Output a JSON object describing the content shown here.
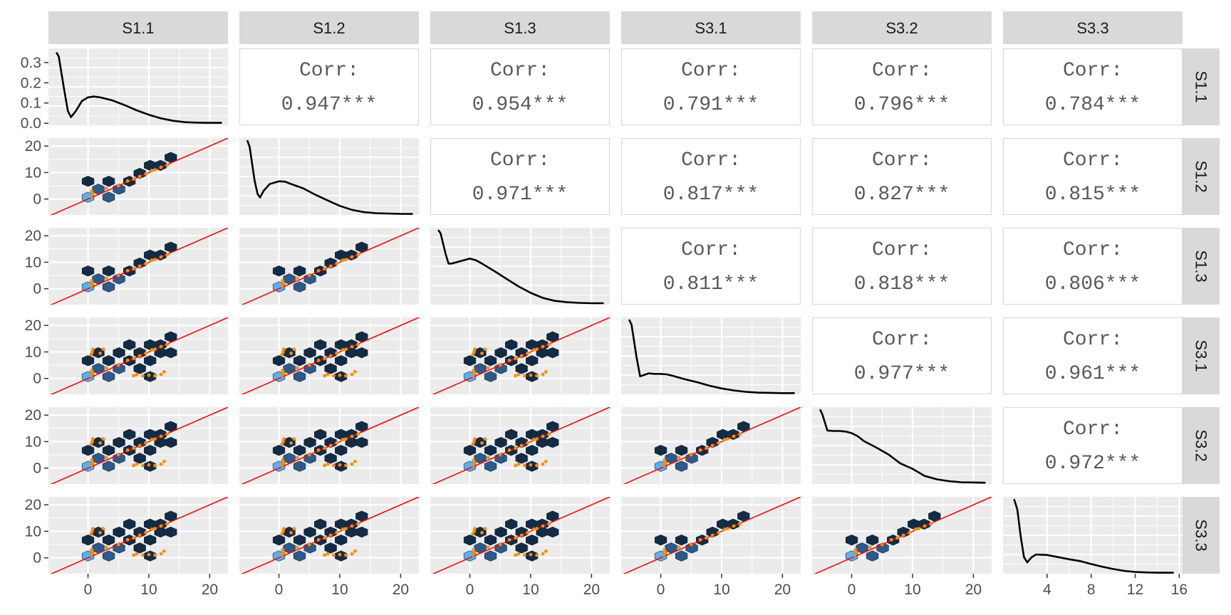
{
  "chart_data": {
    "type": "scatter",
    "title": "",
    "variables": [
      "S1.1",
      "S1.2",
      "S1.3",
      "S3.1",
      "S3.2",
      "S3.3"
    ],
    "diagonal": "density",
    "lower": "hexbin with scatter points and identity line",
    "upper": "correlation",
    "corr_label": "Corr:",
    "correlations": [
      {
        "row": "S1.1",
        "col": "S1.2",
        "value": "0.947***"
      },
      {
        "row": "S1.1",
        "col": "S1.3",
        "value": "0.954***"
      },
      {
        "row": "S1.1",
        "col": "S3.1",
        "value": "0.791***"
      },
      {
        "row": "S1.1",
        "col": "S3.2",
        "value": "0.796***"
      },
      {
        "row": "S1.1",
        "col": "S3.3",
        "value": "0.784***"
      },
      {
        "row": "S1.2",
        "col": "S1.3",
        "value": "0.971***"
      },
      {
        "row": "S1.2",
        "col": "S3.1",
        "value": "0.817***"
      },
      {
        "row": "S1.2",
        "col": "S3.2",
        "value": "0.827***"
      },
      {
        "row": "S1.2",
        "col": "S3.3",
        "value": "0.815***"
      },
      {
        "row": "S1.3",
        "col": "S3.1",
        "value": "0.811***"
      },
      {
        "row": "S1.3",
        "col": "S3.2",
        "value": "0.818***"
      },
      {
        "row": "S1.3",
        "col": "S3.3",
        "value": "0.806***"
      },
      {
        "row": "S3.1",
        "col": "S3.2",
        "value": "0.977***"
      },
      {
        "row": "S3.1",
        "col": "S3.3",
        "value": "0.961***"
      },
      {
        "row": "S3.2",
        "col": "S3.3",
        "value": "0.972***"
      }
    ],
    "axes": {
      "x_default": {
        "lim": [
          -6.5,
          23
        ],
        "ticks": [
          0,
          10,
          20
        ]
      },
      "x_last": {
        "lim": [
          0,
          16.3
        ],
        "ticks": [
          4,
          8,
          12,
          16
        ]
      },
      "y_first": {
        "lim": [
          -0.01,
          0.37
        ],
        "ticks": [
          0.0,
          0.1,
          0.2,
          0.3
        ],
        "tick_labels": [
          "0.0",
          "0.1",
          "0.2",
          "0.3"
        ]
      },
      "y_default": {
        "lim": [
          -6,
          23
        ],
        "ticks": [
          0,
          10,
          20
        ]
      }
    },
    "density_curves": [
      {
        "var": "S1.1",
        "x": [
          -5.2,
          -4.8,
          -4,
          -3.3,
          -2.8,
          -2,
          -1,
          0,
          1,
          2,
          4,
          6,
          8,
          10,
          12,
          14,
          16,
          18,
          20,
          22
        ],
        "y": [
          0.35,
          0.33,
          0.18,
          0.06,
          0.03,
          0.06,
          0.11,
          0.128,
          0.132,
          0.128,
          0.113,
          0.09,
          0.064,
          0.042,
          0.024,
          0.012,
          0.005,
          0.003,
          0.002,
          0.002
        ]
      },
      {
        "var": "S1.2",
        "x": [
          -5.2,
          -4.8,
          -4,
          -3.5,
          -3.1,
          -2.5,
          -1.5,
          0,
          1,
          2,
          4,
          6,
          8,
          10,
          12,
          14,
          16,
          18,
          20,
          22
        ],
        "y": [
          0.22,
          0.2,
          0.1,
          0.06,
          0.05,
          0.07,
          0.09,
          0.098,
          0.097,
          0.09,
          0.077,
          0.058,
          0.041,
          0.025,
          0.013,
          0.006,
          0.003,
          0.002,
          0.001,
          0.001
        ]
      },
      {
        "var": "S1.3",
        "x": [
          -5.2,
          -4.8,
          -4,
          -3.5,
          -3,
          -2,
          -1,
          0,
          1,
          2,
          4,
          6,
          8,
          10,
          12,
          14,
          16,
          18,
          20,
          22
        ],
        "y": [
          0.22,
          0.21,
          0.15,
          0.12,
          0.12,
          0.125,
          0.13,
          0.135,
          0.13,
          0.12,
          0.098,
          0.075,
          0.052,
          0.033,
          0.018,
          0.009,
          0.005,
          0.003,
          0.002,
          0.002
        ]
      },
      {
        "var": "S3.1",
        "x": [
          -5.2,
          -4.8,
          -4,
          -3.4,
          -2.8,
          -2,
          -1,
          0,
          1,
          2,
          4,
          6,
          8,
          10,
          12,
          14,
          16,
          18,
          20,
          22
        ],
        "y": [
          0.3,
          0.28,
          0.15,
          0.07,
          0.075,
          0.082,
          0.08,
          0.08,
          0.078,
          0.072,
          0.058,
          0.046,
          0.032,
          0.021,
          0.013,
          0.007,
          0.004,
          0.003,
          0.002,
          0.002
        ]
      },
      {
        "var": "S3.2",
        "x": [
          -5.2,
          -4.8,
          -4,
          -3,
          -2,
          -1,
          0,
          1,
          2,
          4,
          6,
          8,
          10,
          12,
          14,
          16,
          18,
          20,
          22
        ],
        "y": [
          0.28,
          0.26,
          0.2,
          0.198,
          0.198,
          0.196,
          0.19,
          0.178,
          0.16,
          0.136,
          0.11,
          0.075,
          0.055,
          0.028,
          0.015,
          0.008,
          0.004,
          0.003,
          0.002
        ]
      },
      {
        "var": "S3.3",
        "x": [
          1,
          1.3,
          1.6,
          1.9,
          2.2,
          2.6,
          3,
          4,
          5,
          6,
          7,
          8,
          9,
          10,
          11,
          12,
          13,
          14,
          15.5
        ],
        "y": [
          0.28,
          0.24,
          0.14,
          0.06,
          0.04,
          0.06,
          0.07,
          0.068,
          0.06,
          0.052,
          0.045,
          0.034,
          0.024,
          0.015,
          0.008,
          0.004,
          0.002,
          0.001,
          0.001
        ]
      }
    ],
    "panel_scatter": {
      "group_a": [
        [
          0.5,
          1
        ],
        [
          0.6,
          3
        ],
        [
          0.8,
          2
        ],
        [
          3,
          4
        ],
        [
          5,
          5
        ],
        [
          6.5,
          6.8
        ],
        [
          7.5,
          7.5
        ],
        [
          8.5,
          8.5
        ],
        [
          9.5,
          9.5
        ],
        [
          10.5,
          10.8
        ],
        [
          11,
          11
        ],
        [
          12,
          12
        ],
        [
          13,
          12.8
        ]
      ],
      "group_b": [
        [
          0.5,
          9
        ],
        [
          0.7,
          10
        ],
        [
          0.8,
          11
        ],
        [
          2,
          9.5
        ],
        [
          2.5,
          11
        ],
        [
          7.5,
          1
        ],
        [
          8,
          1.5
        ],
        [
          9,
          1
        ],
        [
          10,
          1.2
        ],
        [
          11,
          1
        ],
        [
          12,
          1.5
        ],
        [
          12.5,
          2.5
        ]
      ]
    },
    "hex_cells": [
      {
        "x": 0,
        "y": 0.7,
        "shade": "light"
      },
      {
        "x": 1.7,
        "y": 3.7,
        "shade": "mid"
      },
      {
        "x": 3.4,
        "y": 0.7,
        "shade": "mid"
      },
      {
        "x": 5.1,
        "y": 3.7,
        "shade": "mid"
      },
      {
        "x": 0,
        "y": 6.7,
        "shade": "dark"
      },
      {
        "x": 3.4,
        "y": 6.7,
        "shade": "dark"
      },
      {
        "x": 6.8,
        "y": 6.7,
        "shade": "dark"
      },
      {
        "x": 8.5,
        "y": 9.7,
        "shade": "dark"
      },
      {
        "x": 10.2,
        "y": 12.7,
        "shade": "dark"
      },
      {
        "x": 11.9,
        "y": 12.7,
        "shade": "dark"
      },
      {
        "x": 13.6,
        "y": 15.7,
        "shade": "dark"
      }
    ],
    "colors": {
      "panel_bg": "#ebebeb",
      "grid": "#ffffff",
      "strip_bg": "#d9d9d9",
      "hex_dark": "#132b43",
      "hex_mid": "#2d5a89",
      "hex_light": "#56b1f7",
      "points": "#ff8c00",
      "identity_line": "#ff0000",
      "density_line": "#000000"
    }
  }
}
